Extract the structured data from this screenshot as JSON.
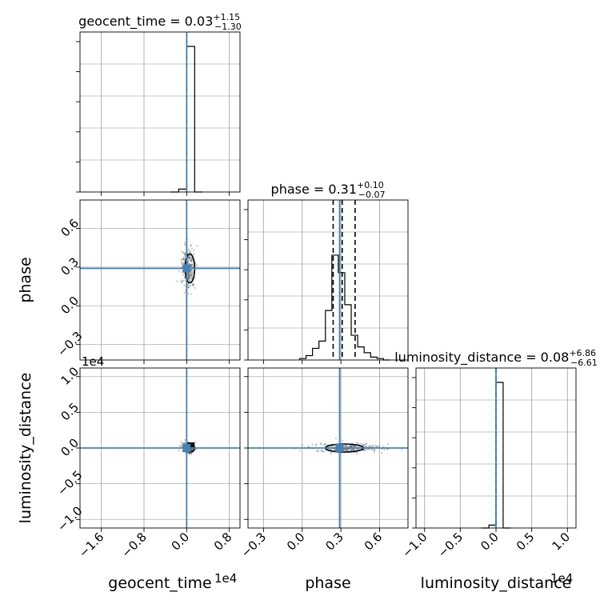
{
  "chart_data": {
    "type": "scatter",
    "parameters": [
      "geocent_time",
      "phase",
      "luminosity_distance"
    ],
    "axis_labels": [
      "geocent_time",
      "phase",
      "luminosity_distance"
    ],
    "offset_texts": {
      "geocent_time": "1e4",
      "luminosity_distance": "1e4"
    },
    "titles": [
      {
        "name": "geocent_time",
        "median": "0.03",
        "plus": "+1.15",
        "minus": "−1.30"
      },
      {
        "name": "phase",
        "median": "0.31",
        "plus": "+0.10",
        "minus": "−0.07"
      },
      {
        "name": "luminosity_distance",
        "median": "0.08",
        "plus": "+6.86",
        "minus": "−6.61"
      }
    ],
    "truths": {
      "geocent_time": 0.0,
      "phase": 0.29,
      "luminosity_distance": 0.0
    },
    "ranges": {
      "geocent_time": [
        -2.0,
        1.0
      ],
      "phase": [
        -0.42,
        0.82
      ],
      "luminosity_distance": [
        -1.12,
        1.12
      ]
    },
    "ticks": {
      "geocent_time": [
        "−1.6",
        "−0.8",
        "0.0",
        "0.8"
      ],
      "geocent_time_values": [
        -1.6,
        -0.8,
        0.0,
        0.8
      ],
      "phase": [
        "−0.3",
        "0.0",
        "0.3",
        "0.6"
      ],
      "phase_values": [
        -0.3,
        0.0,
        0.3,
        0.6
      ],
      "luminosity_distance": [
        "−1.0",
        "−0.5",
        "0.0",
        "0.5",
        "1.0"
      ],
      "luminosity_distance_values": [
        -1.0,
        -0.5,
        0.0,
        0.5,
        1.0
      ]
    },
    "histograms": {
      "geocent_time": {
        "edges": [
          -0.3,
          -0.15,
          0.0,
          0.15,
          0.3
        ],
        "values": [
          0.0,
          0.02,
          1.0,
          0.0
        ]
      },
      "phase": {
        "edges": [
          -0.02,
          0.03,
          0.08,
          0.13,
          0.18,
          0.23,
          0.28,
          0.33,
          0.38,
          0.43,
          0.48,
          0.53,
          0.58,
          0.63,
          0.68
        ],
        "values": [
          0.01,
          0.03,
          0.08,
          0.13,
          0.34,
          0.72,
          0.6,
          0.38,
          0.17,
          0.09,
          0.05,
          0.02,
          0.01,
          0.0
        ]
      },
      "luminosity_distance": {
        "edges": [
          -0.2,
          -0.1,
          0.0,
          0.1,
          0.2
        ],
        "values": [
          0.0,
          0.02,
          1.0,
          0.0
        ]
      }
    },
    "quantile_lines": {
      "geocent_time": [
        0.0
      ],
      "phase": [
        0.24,
        0.31,
        0.41
      ],
      "luminosity_distance": [
        0.0
      ]
    },
    "grid": true
  }
}
